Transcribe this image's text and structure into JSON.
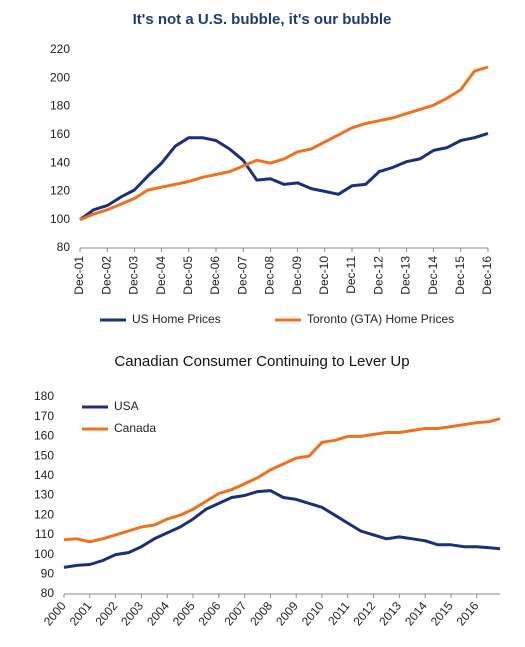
{
  "chart_data": [
    {
      "type": "line",
      "title": "It's not a U.S. bubble, it's our bubble",
      "categories": [
        "Dec-01",
        null,
        "Dec-02",
        null,
        "Dec-03",
        null,
        "Dec-04",
        null,
        "Dec-05",
        null,
        "Dec-06",
        null,
        "Dec-07",
        null,
        "Dec-08",
        null,
        "Dec-09",
        null,
        "Dec-10",
        null,
        "Dec-11",
        null,
        "Dec-12",
        null,
        "Dec-13",
        null,
        "Dec-14",
        null,
        "Dec-15",
        null,
        "Dec-16"
      ],
      "series": [
        {
          "name": "US Home Prices",
          "color": "#1b2f7a",
          "values": [
            100,
            107,
            110,
            116,
            121,
            131,
            140,
            152,
            158,
            158,
            156,
            150,
            142,
            128,
            129,
            125,
            126,
            122,
            120,
            118,
            124,
            125,
            134,
            137,
            141,
            143,
            149,
            151,
            156,
            158,
            161
          ]
        },
        {
          "name": "Toronto (GTA) Home Prices",
          "color": "#f0701d",
          "values": [
            100,
            104,
            107,
            111,
            115,
            121,
            123,
            125,
            127,
            130,
            132,
            134,
            138,
            142,
            140,
            143,
            148,
            150,
            155,
            160,
            165,
            168,
            170,
            172,
            175,
            178,
            181,
            186,
            192,
            205,
            208
          ]
        }
      ],
      "ylim": [
        80,
        220
      ],
      "yticks": [
        80,
        100,
        120,
        140,
        160,
        180,
        200,
        220
      ],
      "grid": false,
      "legend": "bottom"
    },
    {
      "type": "line",
      "title": "Canadian Consumer Continuing to Lever Up",
      "x": [
        2000,
        2000.5,
        2001,
        2001.5,
        2002,
        2002.5,
        2003,
        2003.5,
        2004,
        2004.5,
        2005,
        2005.5,
        2006,
        2006.5,
        2007,
        2007.5,
        2008,
        2008.5,
        2009,
        2009.5,
        2010,
        2010.5,
        2011,
        2011.5,
        2012,
        2012.5,
        2013,
        2013.5,
        2014,
        2014.5,
        2015,
        2015.5,
        2016,
        2016.5,
        2016.9
      ],
      "series": [
        {
          "name": "USA",
          "color": "#1b2f7a",
          "values": [
            93.5,
            94.5,
            95,
            97,
            100,
            101,
            104,
            108,
            111,
            114,
            118,
            123,
            126,
            129,
            130,
            132,
            132.5,
            129,
            128,
            126,
            124,
            120,
            116,
            112,
            110,
            108,
            109,
            108,
            107,
            105,
            105,
            104,
            104,
            103.5,
            103
          ]
        },
        {
          "name": "Canada",
          "color": "#f0701d",
          "values": [
            107.5,
            108,
            106.5,
            108,
            110,
            112,
            114,
            115,
            118,
            120,
            123,
            127,
            131,
            133,
            136,
            139,
            143,
            146,
            149,
            150,
            157,
            158,
            160,
            160,
            161,
            162,
            162,
            163,
            164,
            164,
            165,
            166,
            167,
            167.5,
            169
          ]
        }
      ],
      "xlim": [
        2000,
        2016.9
      ],
      "xticks": [
        2000,
        2001,
        2002,
        2003,
        2004,
        2005,
        2006,
        2007,
        2008,
        2009,
        2010,
        2011,
        2012,
        2013,
        2014,
        2015,
        2016
      ],
      "ylim": [
        80,
        180
      ],
      "yticks": [
        80,
        90,
        100,
        110,
        120,
        130,
        140,
        150,
        160,
        170,
        180
      ],
      "grid": false,
      "legend": "top-left"
    }
  ]
}
